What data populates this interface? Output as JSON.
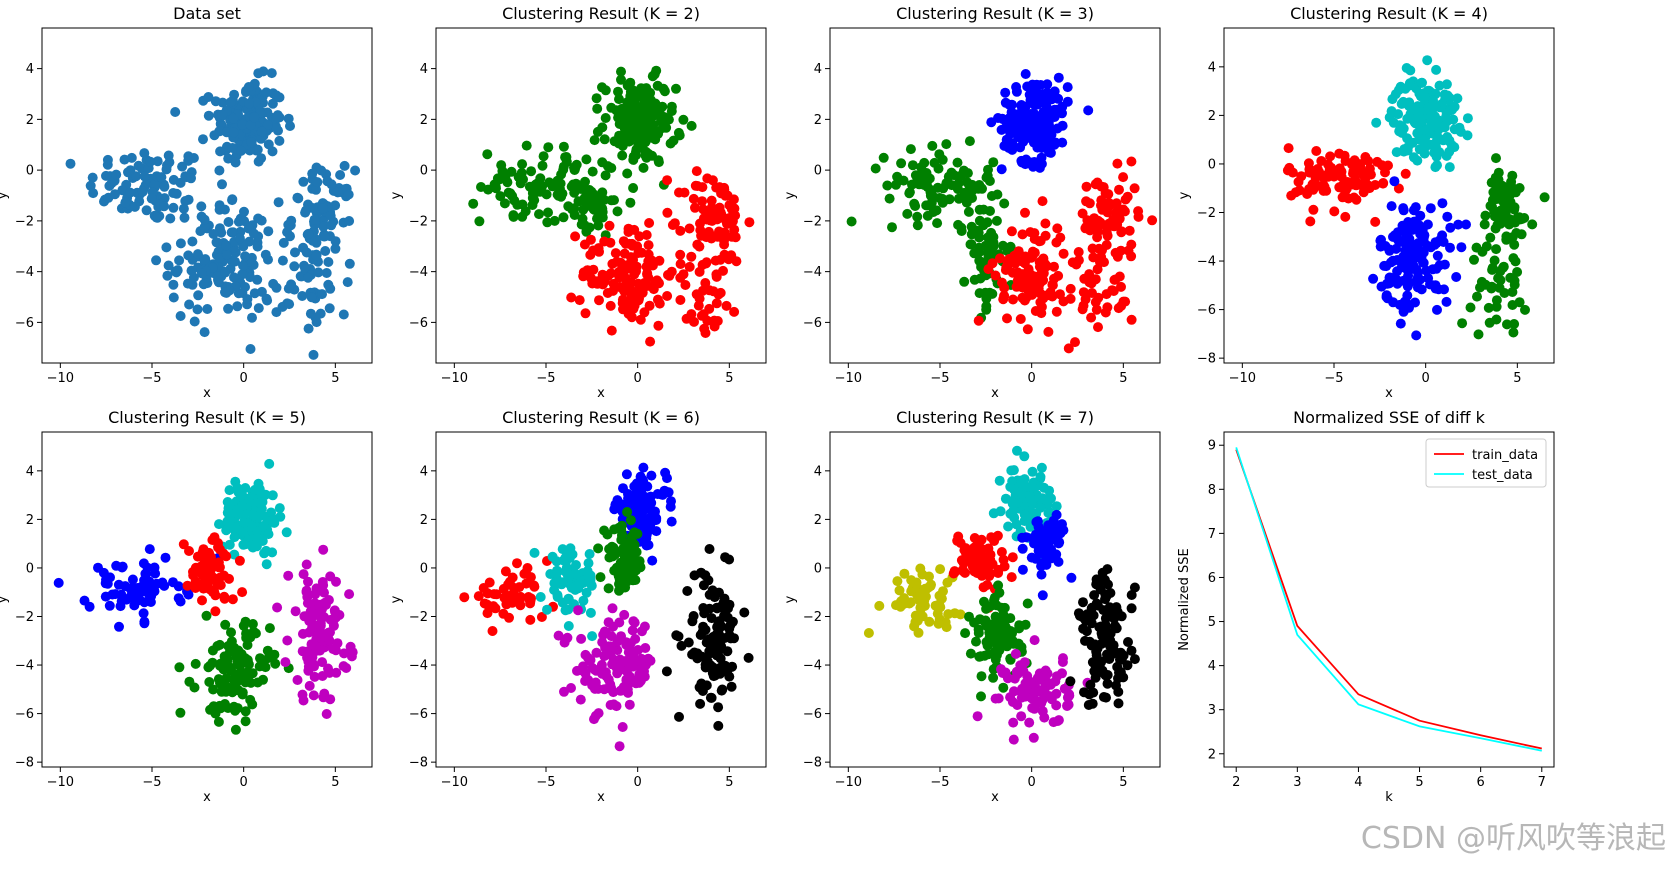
{
  "watermark": "CSDN @听风吹等浪起",
  "colors": {
    "default": "#1f77b4",
    "r": "#ff0000",
    "g": "#008000",
    "b": "#0000ff",
    "c": "#00bfbf",
    "m": "#bf00bf",
    "y": "#bfbf00",
    "k": "#000000",
    "train": "#ff0000",
    "test": "#00ffff"
  },
  "chart_data": [
    {
      "type": "scatter",
      "title": "Data set",
      "xlabel": "x",
      "ylabel": "y",
      "xlim": [
        -11,
        7
      ],
      "ylim": [
        -7.6,
        5.6
      ],
      "xticks": [
        -10,
        -5,
        0,
        5
      ],
      "yticks": [
        -6,
        -4,
        -2,
        0,
        2,
        4
      ],
      "series": [
        {
          "color": "default",
          "regions": [
            {
              "cx": -5.2,
              "cy": -0.6,
              "sx": 2.2,
              "sy": 1.0,
              "n": 90
            },
            {
              "cx": 0.2,
              "cy": 1.9,
              "sx": 1.3,
              "sy": 1.1,
              "n": 170
            },
            {
              "cx": -1.0,
              "cy": -3.6,
              "sx": 2.0,
              "sy": 1.6,
              "n": 150
            },
            {
              "cx": 4.3,
              "cy": -1.8,
              "sx": 1.1,
              "sy": 1.2,
              "n": 80
            },
            {
              "cx": 3.8,
              "cy": -4.6,
              "sx": 1.3,
              "sy": 1.3,
              "n": 40
            }
          ]
        }
      ]
    },
    {
      "type": "scatter",
      "title": "Clustering Result (K = 2)",
      "xlabel": "x",
      "ylabel": "y",
      "xlim": [
        -11,
        7
      ],
      "ylim": [
        -7.6,
        5.6
      ],
      "xticks": [
        -10,
        -5,
        0,
        5
      ],
      "yticks": [
        -6,
        -4,
        -2,
        0,
        2,
        4
      ],
      "series": [
        {
          "color": "g",
          "regions": [
            {
              "cx": -5.2,
              "cy": -0.6,
              "sx": 2.2,
              "sy": 1.0,
              "n": 90
            },
            {
              "cx": 0.1,
              "cy": 1.9,
              "sx": 1.3,
              "sy": 1.1,
              "n": 170
            },
            {
              "cx": -2.6,
              "cy": -1.6,
              "sx": 0.9,
              "sy": 0.8,
              "n": 40
            }
          ]
        },
        {
          "color": "r",
          "regions": [
            {
              "cx": -0.5,
              "cy": -4.0,
              "sx": 1.7,
              "sy": 1.4,
              "n": 130
            },
            {
              "cx": 4.2,
              "cy": -1.9,
              "sx": 1.1,
              "sy": 1.2,
              "n": 80
            },
            {
              "cx": 3.8,
              "cy": -4.8,
              "sx": 1.2,
              "sy": 1.2,
              "n": 40
            }
          ]
        }
      ]
    },
    {
      "type": "scatter",
      "title": "Clustering Result (K = 3)",
      "xlabel": "x",
      "ylabel": "y",
      "xlim": [
        -11,
        7
      ],
      "ylim": [
        -7.6,
        5.6
      ],
      "xticks": [
        -10,
        -5,
        0,
        5
      ],
      "yticks": [
        -6,
        -4,
        -2,
        0,
        2,
        4
      ],
      "series": [
        {
          "color": "b",
          "regions": [
            {
              "cx": 0.2,
              "cy": 2.0,
              "sx": 1.2,
              "sy": 1.1,
              "n": 170
            }
          ]
        },
        {
          "color": "g",
          "regions": [
            {
              "cx": -5.0,
              "cy": -0.6,
              "sx": 2.0,
              "sy": 0.9,
              "n": 90
            },
            {
              "cx": -2.5,
              "cy": -3.0,
              "sx": 0.8,
              "sy": 1.6,
              "n": 70
            }
          ]
        },
        {
          "color": "r",
          "regions": [
            {
              "cx": 0.0,
              "cy": -4.0,
              "sx": 1.3,
              "sy": 1.4,
              "n": 110
            },
            {
              "cx": 4.2,
              "cy": -1.9,
              "sx": 1.1,
              "sy": 1.2,
              "n": 80
            },
            {
              "cx": 3.8,
              "cy": -4.8,
              "sx": 1.2,
              "sy": 1.2,
              "n": 40
            }
          ]
        }
      ]
    },
    {
      "type": "scatter",
      "title": "Clustering Result (K = 4)",
      "xlabel": "x",
      "ylabel": "y",
      "xlim": [
        -11,
        7
      ],
      "ylim": [
        -8.2,
        5.6
      ],
      "xticks": [
        -10,
        -5,
        0,
        5
      ],
      "yticks": [
        -8,
        -6,
        -4,
        -2,
        0,
        2,
        4
      ],
      "series": [
        {
          "color": "c",
          "regions": [
            {
              "cx": 0.0,
              "cy": 1.9,
              "sx": 1.2,
              "sy": 1.1,
              "n": 170
            }
          ]
        },
        {
          "color": "r",
          "regions": [
            {
              "cx": -4.6,
              "cy": -0.6,
              "sx": 1.9,
              "sy": 0.9,
              "n": 100
            }
          ]
        },
        {
          "color": "b",
          "regions": [
            {
              "cx": -0.6,
              "cy": -3.8,
              "sx": 1.3,
              "sy": 1.5,
              "n": 140
            }
          ]
        },
        {
          "color": "g",
          "regions": [
            {
              "cx": 4.2,
              "cy": -1.9,
              "sx": 1.1,
              "sy": 1.2,
              "n": 70
            },
            {
              "cx": 4.0,
              "cy": -5.0,
              "sx": 1.0,
              "sy": 1.2,
              "n": 40
            }
          ]
        }
      ]
    },
    {
      "type": "scatter",
      "title": "Clustering Result (K = 5)",
      "xlabel": "x",
      "ylabel": "y",
      "xlim": [
        -11,
        7
      ],
      "ylim": [
        -8.2,
        5.6
      ],
      "xticks": [
        -10,
        -5,
        0,
        5
      ],
      "yticks": [
        -8,
        -6,
        -4,
        -2,
        0,
        2,
        4
      ],
      "series": [
        {
          "color": "c",
          "regions": [
            {
              "cx": 0.4,
              "cy": 2.1,
              "sx": 1.0,
              "sy": 1.0,
              "n": 140
            }
          ]
        },
        {
          "color": "b",
          "regions": [
            {
              "cx": -6.0,
              "cy": -0.9,
              "sx": 1.7,
              "sy": 0.8,
              "n": 70
            }
          ]
        },
        {
          "color": "r",
          "regions": [
            {
              "cx": -1.8,
              "cy": -0.1,
              "sx": 0.9,
              "sy": 0.9,
              "n": 80
            }
          ]
        },
        {
          "color": "g",
          "regions": [
            {
              "cx": -0.5,
              "cy": -4.3,
              "sx": 1.3,
              "sy": 1.3,
              "n": 120
            }
          ]
        },
        {
          "color": "m",
          "regions": [
            {
              "cx": 4.1,
              "cy": -2.7,
              "sx": 1.1,
              "sy": 1.8,
              "n": 110
            }
          ]
        }
      ]
    },
    {
      "type": "scatter",
      "title": "Clustering Result (K = 6)",
      "xlabel": "x",
      "ylabel": "y",
      "xlim": [
        -11,
        7
      ],
      "ylim": [
        -8.2,
        5.6
      ],
      "xticks": [
        -10,
        -5,
        0,
        5
      ],
      "yticks": [
        -8,
        -6,
        -4,
        -2,
        0,
        2,
        4
      ],
      "series": [
        {
          "color": "b",
          "regions": [
            {
              "cx": 0.2,
              "cy": 2.4,
              "sx": 0.9,
              "sy": 0.9,
              "n": 130
            }
          ]
        },
        {
          "color": "r",
          "regions": [
            {
              "cx": -7.0,
              "cy": -1.2,
              "sx": 1.5,
              "sy": 0.7,
              "n": 50
            }
          ]
        },
        {
          "color": "c",
          "regions": [
            {
              "cx": -3.6,
              "cy": -0.5,
              "sx": 0.9,
              "sy": 0.9,
              "n": 70
            }
          ]
        },
        {
          "color": "g",
          "regions": [
            {
              "cx": -0.8,
              "cy": 0.3,
              "sx": 0.8,
              "sy": 0.9,
              "n": 70
            }
          ]
        },
        {
          "color": "m",
          "regions": [
            {
              "cx": -1.2,
              "cy": -4.0,
              "sx": 1.4,
              "sy": 1.3,
              "n": 120
            }
          ]
        },
        {
          "color": "k",
          "regions": [
            {
              "cx": 4.1,
              "cy": -3.0,
              "sx": 1.0,
              "sy": 1.8,
              "n": 110
            }
          ]
        }
      ]
    },
    {
      "type": "scatter",
      "title": "Clustering Result (K = 7)",
      "xlabel": "x",
      "ylabel": "y",
      "xlim": [
        -11,
        7
      ],
      "ylim": [
        -8.2,
        5.6
      ],
      "xticks": [
        -10,
        -5,
        0,
        5
      ],
      "yticks": [
        -8,
        -6,
        -4,
        -2,
        0,
        2,
        4
      ],
      "series": [
        {
          "color": "c",
          "regions": [
            {
              "cx": -0.2,
              "cy": 2.8,
              "sx": 0.9,
              "sy": 0.9,
              "n": 100
            }
          ]
        },
        {
          "color": "b",
          "regions": [
            {
              "cx": 0.8,
              "cy": 1.0,
              "sx": 0.7,
              "sy": 0.9,
              "n": 60
            }
          ]
        },
        {
          "color": "y",
          "regions": [
            {
              "cx": -6.2,
              "cy": -1.2,
              "sx": 1.5,
              "sy": 0.8,
              "n": 60
            }
          ]
        },
        {
          "color": "r",
          "regions": [
            {
              "cx": -2.8,
              "cy": 0.3,
              "sx": 0.9,
              "sy": 0.8,
              "n": 70
            }
          ]
        },
        {
          "color": "g",
          "regions": [
            {
              "cx": -1.8,
              "cy": -2.9,
              "sx": 1.0,
              "sy": 1.2,
              "n": 90
            }
          ]
        },
        {
          "color": "m",
          "regions": [
            {
              "cx": 0.3,
              "cy": -5.0,
              "sx": 1.2,
              "sy": 1.0,
              "n": 90
            }
          ]
        },
        {
          "color": "k",
          "regions": [
            {
              "cx": 4.1,
              "cy": -3.0,
              "sx": 1.0,
              "sy": 1.8,
              "n": 110
            }
          ]
        }
      ]
    },
    {
      "type": "line",
      "title": "Normalized SSE of diff k",
      "xlabel": "k",
      "ylabel": "Normalized SSE",
      "xlim": [
        1.8,
        7.2
      ],
      "ylim": [
        1.7,
        9.3
      ],
      "xticks": [
        2,
        3,
        4,
        5,
        6,
        7
      ],
      "yticks": [
        2,
        3,
        4,
        5,
        6,
        7,
        8,
        9
      ],
      "legend": "top-right",
      "x": [
        2,
        3,
        4,
        5,
        6,
        7
      ],
      "series": [
        {
          "name": "train_data",
          "color": "train",
          "values": [
            8.9,
            4.9,
            3.35,
            2.75,
            2.42,
            2.12
          ]
        },
        {
          "name": "test_data",
          "color": "test",
          "values": [
            8.95,
            4.7,
            3.12,
            2.62,
            2.35,
            2.07
          ]
        }
      ]
    }
  ]
}
